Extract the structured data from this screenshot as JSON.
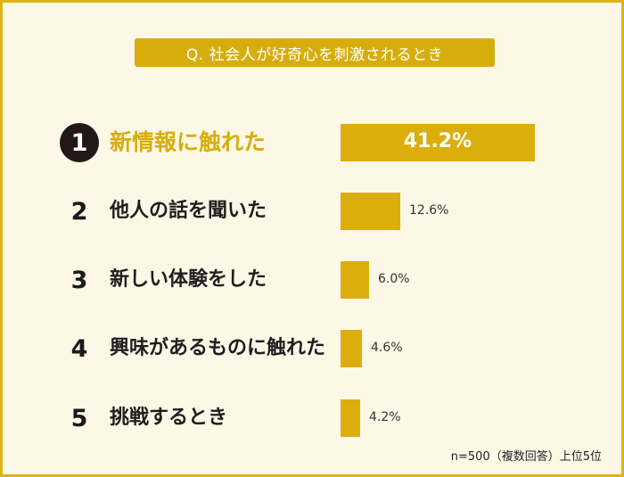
{
  "question": "Q. 社会人が好奇心を刺激されるとき",
  "note": "n=500（複数回答）上位5位",
  "colors": {
    "accent": "#d7ad0c",
    "background": "#fdf8e6",
    "border": "#dcb512",
    "rank1_badge": "#231815"
  },
  "chart_data": {
    "type": "bar",
    "orientation": "horizontal",
    "title": "Q. 社会人が好奇心を刺激されるとき",
    "ranks": [
      "1",
      "2",
      "3",
      "4",
      "5"
    ],
    "categories": [
      "新情報に触れた",
      "他人の話を聞いた",
      "新しい体験をした",
      "興味があるものに触れた",
      "挑戦するとき"
    ],
    "values": [
      41.2,
      12.6,
      6.0,
      4.6,
      4.2
    ],
    "value_labels": [
      "41.2%",
      "12.6%",
      "6.0%",
      "4.6%",
      "4.2%"
    ],
    "unit": "%",
    "grid": false,
    "legend": "none"
  }
}
